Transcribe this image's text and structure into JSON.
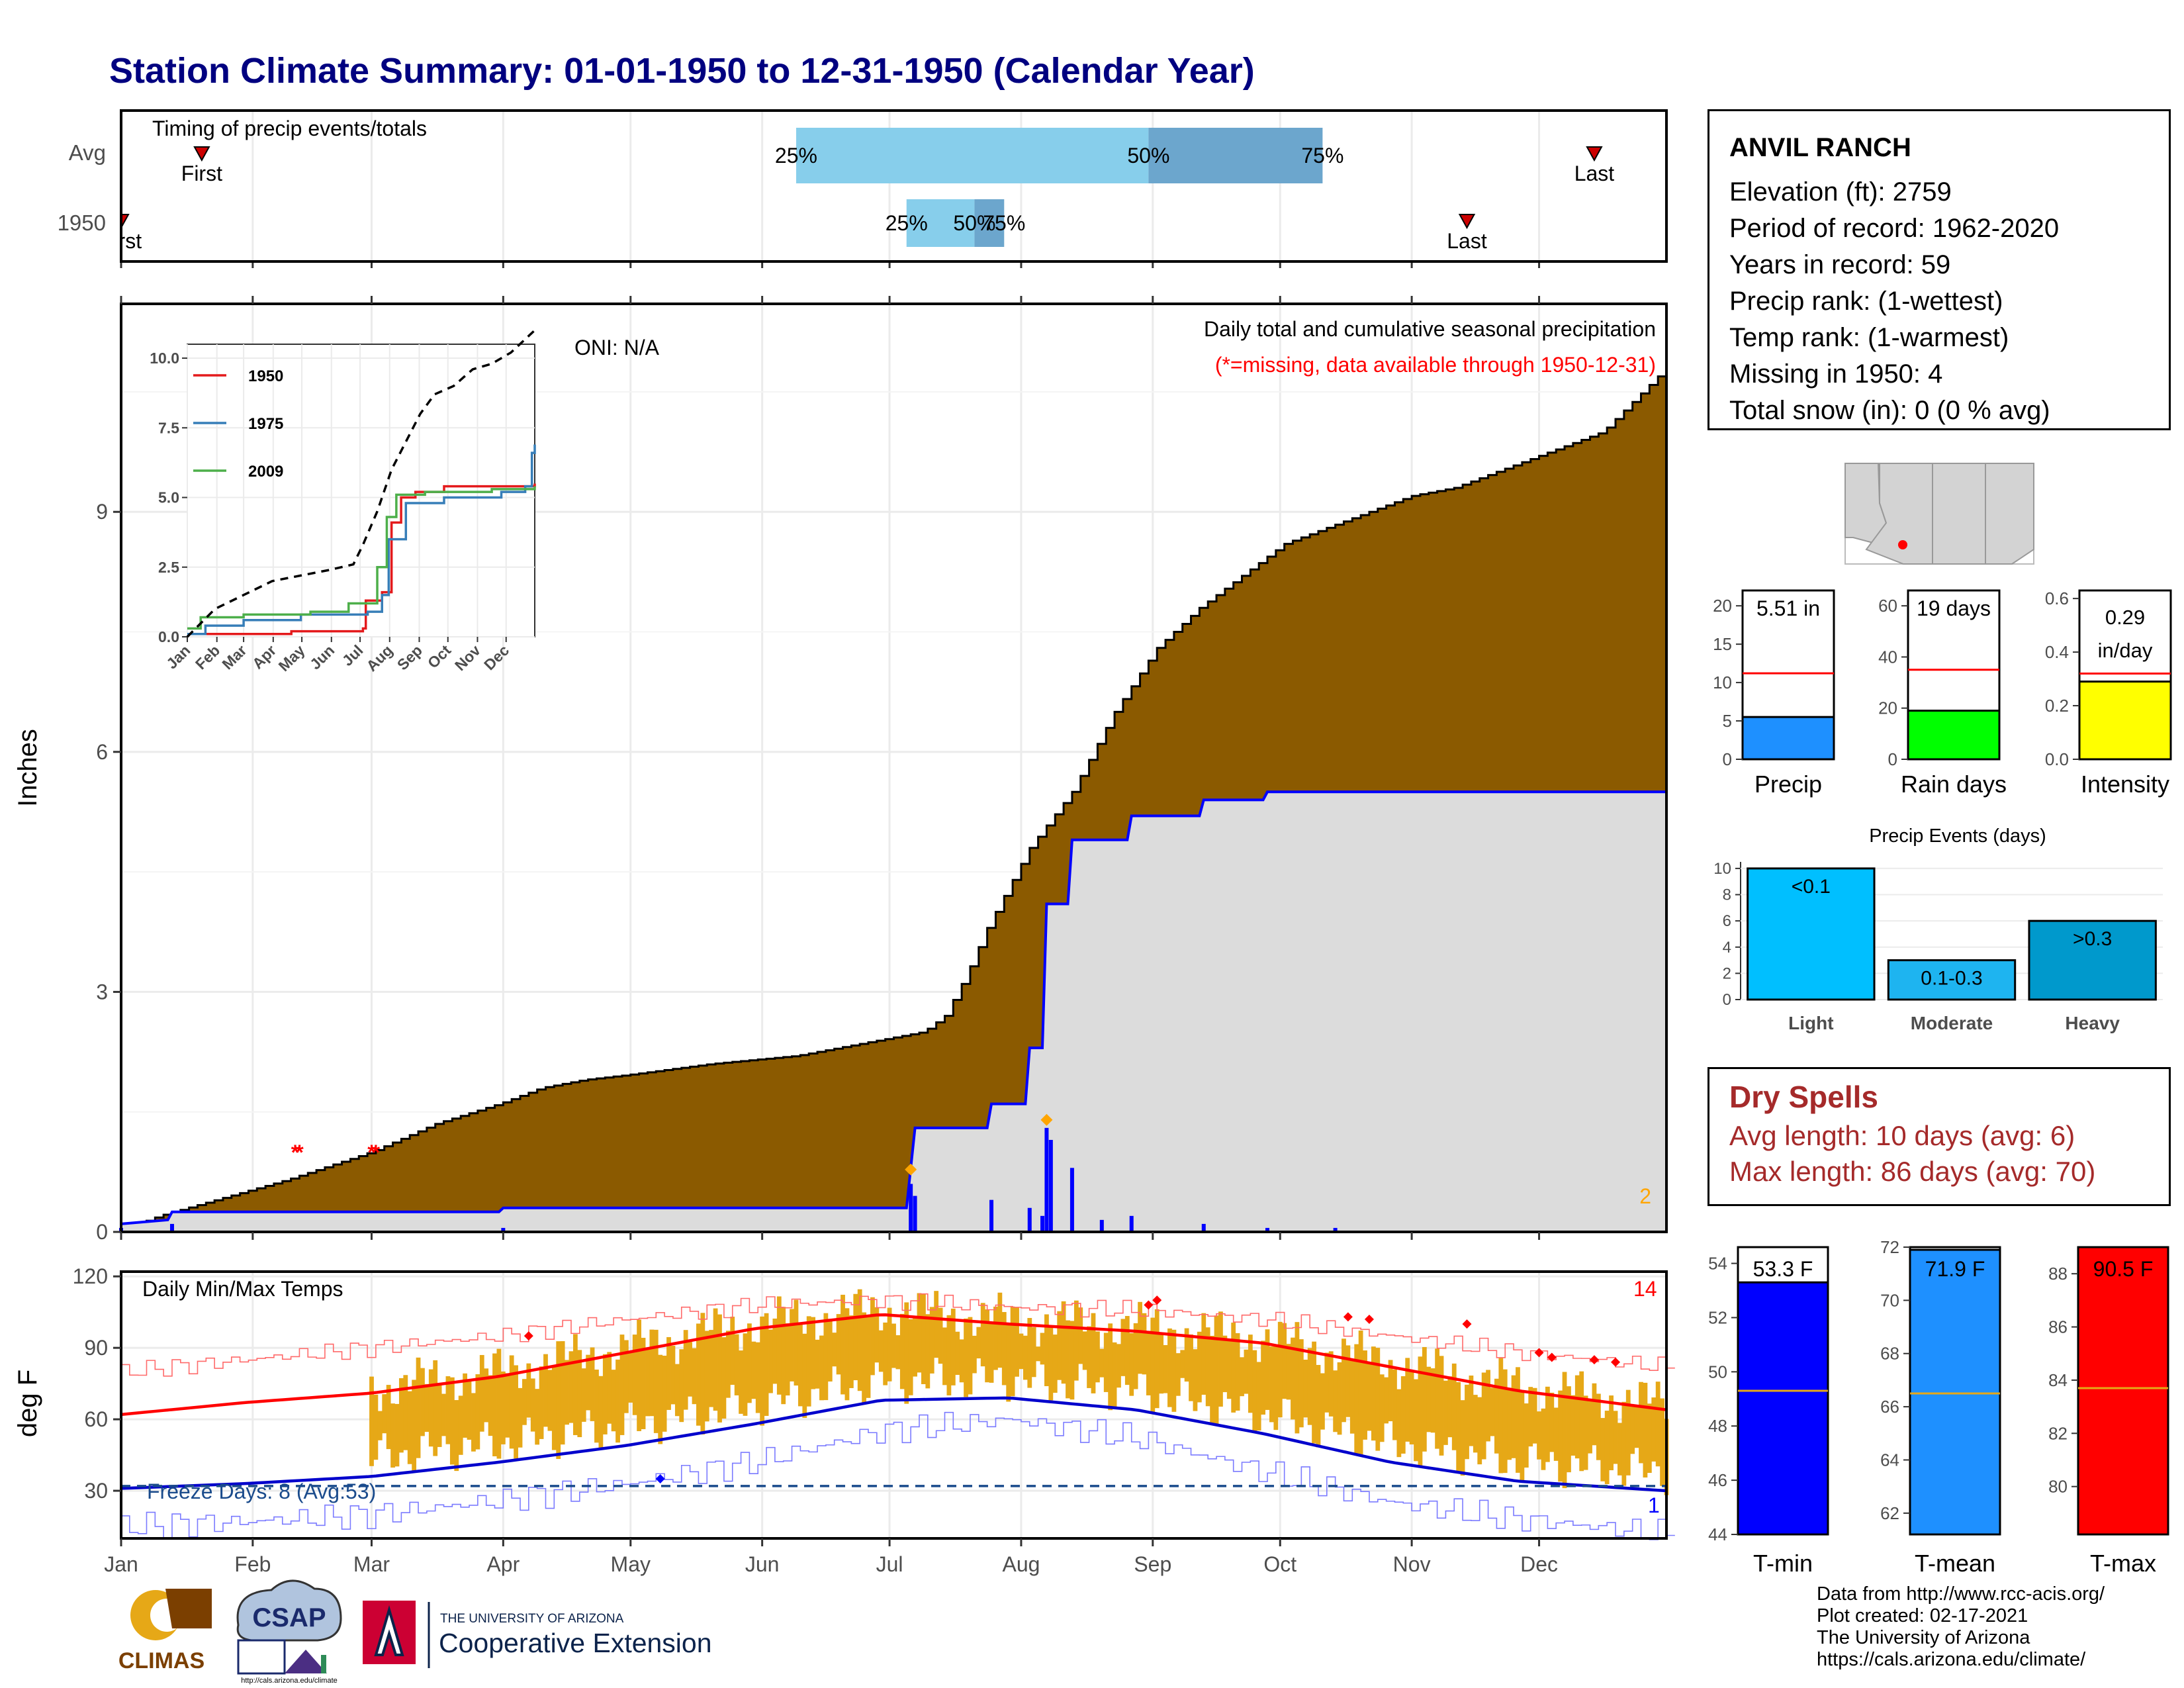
{
  "title": "Station Climate Summary: 01-01-1950 to 12-31-1950 (Calendar Year)",
  "colors": {
    "title": "#000080",
    "precip_fill": "#8B5A00",
    "current_fill": "#DCDCDC",
    "current_line": "#0000FF",
    "tmin_line": "#0000CC",
    "tmax_line": "#FF0000",
    "temp_bar": "#E6A817",
    "q_light": "#87CEEB",
    "q_dark": "#6CA6CD"
  },
  "months": [
    "Jan",
    "Feb",
    "Mar",
    "Apr",
    "May",
    "Jun",
    "Jul",
    "Aug",
    "Sep",
    "Oct",
    "Nov",
    "Dec"
  ],
  "timing": {
    "title": "Timing of precip events/totals",
    "rows": [
      {
        "label": "Avg",
        "first_day": 20,
        "last_day": 348,
        "q25_day": 160,
        "q50_day": 243,
        "q75_day": 284,
        "first_label": "First",
        "last_label": "Last",
        "q25_label": "25%",
        "q50_label": "50%",
        "q75_label": "75%"
      },
      {
        "label": "1950",
        "first_day": 1,
        "last_day": 318,
        "q25_day": 186,
        "q50_day": 202,
        "q75_day": 209,
        "first_label": "First",
        "last_label": "Last",
        "q25_label": "25%",
        "q50_label": "50%",
        "q75_label": "75%"
      }
    ]
  },
  "main_chart": {
    "ylabel": "Inches",
    "y_ticks": [
      "0",
      "3",
      "6",
      "9"
    ],
    "oni": "ONI: N/A",
    "heading": "Daily total and cumulative seasonal precipitation",
    "subheading": "(*=missing, data available through 1950-12-31)",
    "missing_count": "2",
    "ylim": [
      0,
      11.6
    ]
  },
  "chart_data": {
    "type": "area",
    "series": [
      {
        "name": "Average cumulative precipitation",
        "points": [
          [
            1,
            0.02
          ],
          [
            10,
            0.2
          ],
          [
            20,
            0.35
          ],
          [
            40,
            0.65
          ],
          [
            60,
            1.0
          ],
          [
            75,
            1.35
          ],
          [
            90,
            1.6
          ],
          [
            100,
            1.8
          ],
          [
            110,
            1.9
          ],
          [
            120,
            1.96
          ],
          [
            140,
            2.1
          ],
          [
            160,
            2.2
          ],
          [
            170,
            2.3
          ],
          [
            180,
            2.4
          ],
          [
            185,
            2.45
          ],
          [
            190,
            2.5
          ],
          [
            195,
            2.7
          ],
          [
            200,
            3.2
          ],
          [
            205,
            3.8
          ],
          [
            210,
            4.3
          ],
          [
            215,
            4.8
          ],
          [
            225,
            5.5
          ],
          [
            235,
            6.5
          ],
          [
            245,
            7.3
          ],
          [
            255,
            7.8
          ],
          [
            265,
            8.2
          ],
          [
            275,
            8.6
          ],
          [
            285,
            8.8
          ],
          [
            295,
            9.0
          ],
          [
            305,
            9.2
          ],
          [
            315,
            9.3
          ],
          [
            325,
            9.5
          ],
          [
            335,
            9.7
          ],
          [
            350,
            10.0
          ],
          [
            365,
            10.8
          ]
        ]
      },
      {
        "name": "1950",
        "points": [
          [
            1,
            0.1
          ],
          [
            12,
            0.15
          ],
          [
            13,
            0.25
          ],
          [
            90,
            0.25
          ],
          [
            91,
            0.3
          ],
          [
            186,
            0.3
          ],
          [
            187,
            0.8
          ],
          [
            188,
            1.3
          ],
          [
            205,
            1.3
          ],
          [
            206,
            1.6
          ],
          [
            214,
            1.6
          ],
          [
            215,
            2.3
          ],
          [
            218,
            2.3
          ],
          [
            219,
            4.1
          ],
          [
            224,
            4.1
          ],
          [
            225,
            4.9
          ],
          [
            238,
            4.9
          ],
          [
            239,
            5.2
          ],
          [
            255,
            5.2
          ],
          [
            256,
            5.4
          ],
          [
            270,
            5.4
          ],
          [
            271,
            5.5
          ],
          [
            365,
            5.5
          ]
        ]
      }
    ],
    "daily_bars": [
      [
        1,
        0.05
      ],
      [
        13,
        0.1
      ],
      [
        91,
        0.05
      ],
      [
        187,
        0.6
      ],
      [
        188,
        0.45
      ],
      [
        206,
        0.4
      ],
      [
        215,
        0.3
      ],
      [
        218,
        0.2
      ],
      [
        219,
        1.3
      ],
      [
        220,
        1.15
      ],
      [
        225,
        0.8
      ],
      [
        232,
        0.15
      ],
      [
        239,
        0.2
      ],
      [
        256,
        0.1
      ],
      [
        271,
        0.05
      ],
      [
        287,
        0.05
      ]
    ],
    "xlabel": "",
    "xlim": [
      1,
      365
    ]
  },
  "inset": {
    "y_ticks": [
      "0.0",
      "2.5",
      "5.0",
      "7.5",
      "10.0"
    ],
    "months": [
      "Jan",
      "Feb",
      "Mar",
      "Apr",
      "May",
      "Jun",
      "Jul",
      "Aug",
      "Sep",
      "Oct",
      "Nov",
      "Dec"
    ],
    "legend": [
      {
        "name": "1950",
        "color": "#E41A1C"
      },
      {
        "name": "1975",
        "color": "#377EB8"
      },
      {
        "name": "2009",
        "color": "#4DAF4A"
      }
    ],
    "avg": [
      [
        1,
        0
      ],
      [
        30,
        1.0
      ],
      [
        60,
        1.5
      ],
      [
        90,
        2.0
      ],
      [
        120,
        2.2
      ],
      [
        150,
        2.4
      ],
      [
        175,
        2.6
      ],
      [
        185,
        3.3
      ],
      [
        200,
        4.5
      ],
      [
        215,
        6.0
      ],
      [
        230,
        7.0
      ],
      [
        245,
        8.0
      ],
      [
        260,
        8.7
      ],
      [
        280,
        9.0
      ],
      [
        300,
        9.6
      ],
      [
        320,
        9.8
      ],
      [
        340,
        10.2
      ],
      [
        365,
        11.0
      ]
    ],
    "lines": [
      [
        [
          1,
          0.1
        ],
        [
          80,
          0.1
        ],
        [
          110,
          0.2
        ],
        [
          185,
          0.3
        ],
        [
          188,
          1.3
        ],
        [
          205,
          1.6
        ],
        [
          215,
          4.1
        ],
        [
          225,
          5.0
        ],
        [
          240,
          5.2
        ],
        [
          270,
          5.4
        ],
        [
          365,
          5.5
        ]
      ],
      [
        [
          1,
          0.1
        ],
        [
          20,
          0.4
        ],
        [
          60,
          0.6
        ],
        [
          120,
          0.8
        ],
        [
          190,
          0.9
        ],
        [
          205,
          1.5
        ],
        [
          212,
          3.5
        ],
        [
          230,
          4.8
        ],
        [
          270,
          5.0
        ],
        [
          330,
          5.2
        ],
        [
          355,
          5.4
        ],
        [
          362,
          6.6
        ],
        [
          365,
          6.9
        ]
      ],
      [
        [
          1,
          0.3
        ],
        [
          15,
          0.7
        ],
        [
          60,
          0.8
        ],
        [
          130,
          0.9
        ],
        [
          170,
          1.2
        ],
        [
          200,
          2.5
        ],
        [
          210,
          4.3
        ],
        [
          220,
          5.1
        ],
        [
          250,
          5.2
        ],
        [
          320,
          5.3
        ],
        [
          365,
          5.4
        ]
      ]
    ],
    "ylim": [
      0,
      10.5
    ]
  },
  "temp_chart": {
    "ylabel": "deg F",
    "title": "Daily Min/Max Temps",
    "y_ticks": [
      "30",
      "60",
      "90",
      "120"
    ],
    "max_count": "14",
    "min_count": "1",
    "freeze_label": "Freeze Days: 8 (Avg:53)",
    "freeze_line": 32,
    "ylim": [
      10,
      122
    ],
    "avg_max": [
      [
        1,
        62
      ],
      [
        30,
        67
      ],
      [
        60,
        71
      ],
      [
        90,
        78
      ],
      [
        120,
        88
      ],
      [
        150,
        98
      ],
      [
        180,
        104
      ],
      [
        210,
        100
      ],
      [
        240,
        97
      ],
      [
        270,
        92
      ],
      [
        300,
        82
      ],
      [
        330,
        72
      ],
      [
        365,
        64
      ]
    ],
    "avg_min": [
      [
        1,
        31
      ],
      [
        30,
        33
      ],
      [
        60,
        36
      ],
      [
        90,
        42
      ],
      [
        120,
        49
      ],
      [
        150,
        58
      ],
      [
        180,
        68
      ],
      [
        210,
        69
      ],
      [
        240,
        64
      ],
      [
        270,
        54
      ],
      [
        300,
        42
      ],
      [
        330,
        34
      ],
      [
        365,
        30
      ]
    ],
    "rec_max": [
      [
        1,
        80
      ],
      [
        30,
        85
      ],
      [
        60,
        90
      ],
      [
        90,
        95
      ],
      [
        120,
        102
      ],
      [
        150,
        108
      ],
      [
        180,
        110
      ],
      [
        210,
        107
      ],
      [
        240,
        106
      ],
      [
        270,
        102
      ],
      [
        300,
        95
      ],
      [
        330,
        88
      ],
      [
        365,
        82
      ]
    ],
    "rec_min": [
      [
        1,
        15
      ],
      [
        30,
        17
      ],
      [
        60,
        20
      ],
      [
        90,
        26
      ],
      [
        120,
        33
      ],
      [
        150,
        42
      ],
      [
        180,
        55
      ],
      [
        210,
        60
      ],
      [
        240,
        52
      ],
      [
        270,
        38
      ],
      [
        300,
        25
      ],
      [
        330,
        18
      ],
      [
        365,
        12
      ]
    ],
    "obs_start": 60,
    "extremes": [
      [
        97,
        95
      ],
      [
        243,
        108
      ],
      [
        245,
        110
      ],
      [
        290,
        103
      ],
      [
        295,
        102
      ],
      [
        318,
        100
      ],
      [
        335,
        88
      ],
      [
        338,
        86
      ],
      [
        348,
        85
      ],
      [
        353,
        84
      ]
    ]
  },
  "info": {
    "station": "ANVIL RANCH",
    "lines": [
      "Elevation (ft): 2759",
      "Period of record: 1962-2020",
      "Years in record: 59",
      "Precip rank:  (1-wettest)",
      "Temp rank:  (1-warmest)",
      "Missing in 1950: 4",
      "Total snow (in): 0 (0 % avg)"
    ]
  },
  "small_bars": [
    {
      "label": "Precip",
      "value_text": "5.51 in",
      "value": 5.51,
      "avg": 11.2,
      "ymax": 22,
      "ticks": [
        "0",
        "5",
        "10",
        "15",
        "20"
      ],
      "tick_vals": [
        0,
        5,
        10,
        15,
        20
      ],
      "color": "#1E90FF"
    },
    {
      "label": "Rain days",
      "value_text": "19 days",
      "value": 19,
      "avg": 35,
      "ymax": 66,
      "ticks": [
        "0",
        "20",
        "40",
        "60"
      ],
      "tick_vals": [
        0,
        20,
        40,
        60
      ],
      "color": "#00FF00"
    },
    {
      "label": "Intensity",
      "value_text": "0.29\nin/day",
      "value_line1": "0.29",
      "value_line2": "in/day",
      "value": 0.29,
      "avg": 0.32,
      "ymax": 0.63,
      "ticks": [
        "0.0",
        "0.2",
        "0.4",
        "0.6"
      ],
      "tick_vals": [
        0,
        0.2,
        0.4,
        0.6
      ],
      "color": "#FFFF00"
    }
  ],
  "events": {
    "title": "Precip Events (days)",
    "ticks": [
      "0",
      "2",
      "4",
      "6",
      "8",
      "10"
    ],
    "ymax": 10.5,
    "bars": [
      {
        "label": "Light",
        "value": 10,
        "text": "<0.1",
        "color": "#00BFFF"
      },
      {
        "label": "Moderate",
        "value": 3,
        "text": "0.1-0.3",
        "color": "#1EB4F0"
      },
      {
        "label": "Heavy",
        "value": 6,
        "text": ">0.3",
        "color": "#0099CC"
      }
    ]
  },
  "dry_spells": {
    "title": "Dry Spells",
    "avg_line": "Avg length: 10 days (avg: 6)",
    "max_line": "Max length: 86 days (avg: 70)"
  },
  "temp_bars": [
    {
      "label": "T-min",
      "value_text": "53.3 F",
      "value": 53.3,
      "avg": 49.3,
      "ymin": 44,
      "ymax": 54.6,
      "ticks": [
        "44",
        "46",
        "48",
        "50",
        "52",
        "54"
      ],
      "tick_vals": [
        44,
        46,
        48,
        50,
        52,
        54
      ],
      "color": "#0000FF",
      "text_on_white": true
    },
    {
      "label": "T-mean",
      "value_text": "71.9 F",
      "value": 71.9,
      "avg": 66.5,
      "ymin": 61.2,
      "ymax": 72,
      "ticks": [
        "62",
        "64",
        "66",
        "68",
        "70",
        "72"
      ],
      "tick_vals": [
        62,
        64,
        66,
        68,
        70,
        72
      ],
      "color": "#1E90FF",
      "text_on_white": false
    },
    {
      "label": "T-max",
      "value_text": "90.5 F",
      "value": 90.5,
      "avg": 83.7,
      "ymin": 78.2,
      "ymax": 89,
      "ticks": [
        "80",
        "82",
        "84",
        "86",
        "88"
      ],
      "tick_vals": [
        80,
        82,
        84,
        86,
        88
      ],
      "color": "#FF0000",
      "text_on_white": false
    }
  ],
  "logos": {
    "climas": "CLIMAS",
    "csap": "CSAP",
    "csap_url": "http://cals.arizona.edu/climate",
    "ua_small": "THE UNIVERSITY OF ARIZONA",
    "ua_big": "Cooperative Extension"
  },
  "credits": [
    "Data from http://www.rcc-acis.org/",
    "Plot created: 02-17-2021",
    "The University of Arizona",
    "https://cals.arizona.edu/climate/"
  ]
}
